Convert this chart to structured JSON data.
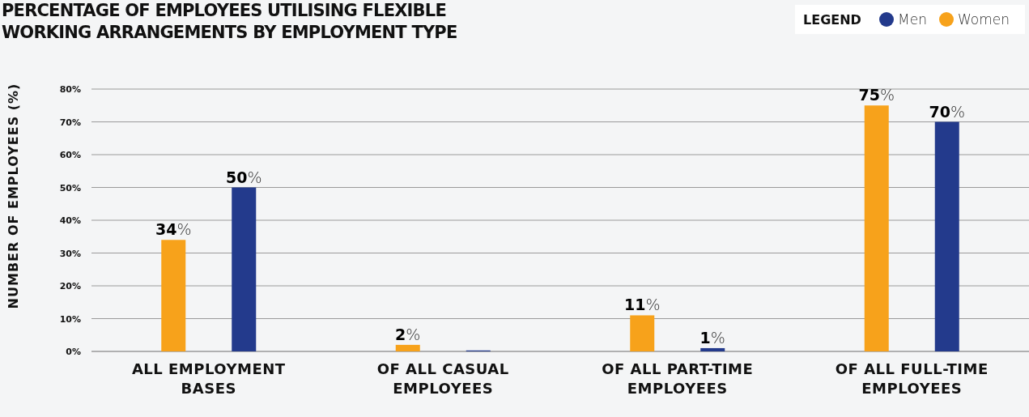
{
  "chart_data": {
    "type": "bar",
    "title": "PERCENTAGE OF EMPLOYEES UTILISING FLEXIBLE WORKING ARRANGEMENTS BY EMPLOYMENT TYPE",
    "ylabel": "NUMBER OF EMPLOYEES (%)",
    "legend_title": "LEGEND",
    "legend": "top right",
    "grid": "y",
    "categories": [
      "ALL EMPLOYMENT BASES",
      "OF ALL CASUAL EMPLOYEES",
      "OF ALL PART-TIME EMPLOYEES",
      "OF ALL FULL-TIME EMPLOYEES"
    ],
    "series": [
      {
        "name": "Women",
        "color": "#f7a21b",
        "values": [
          34,
          2,
          11,
          75
        ],
        "value_labels": [
          "34%",
          "2%",
          "11%",
          "75%"
        ]
      },
      {
        "name": "Men",
        "color": "#233a8c",
        "values": [
          50,
          0.3,
          1,
          70
        ],
        "value_labels": [
          "50%",
          null,
          "1%",
          "70%"
        ]
      }
    ],
    "ylim": [
      0,
      80
    ],
    "yticks": [
      {
        "value": 0,
        "label": "0%"
      },
      {
        "value": 10,
        "label": "10%"
      },
      {
        "value": 20,
        "label": "20%"
      },
      {
        "value": 30,
        "label": "30%"
      },
      {
        "value": 40,
        "label": "40%"
      },
      {
        "value": 50,
        "label": "50%"
      },
      {
        "value": 60,
        "label": "60%"
      },
      {
        "value": 70,
        "label": "70%"
      },
      {
        "value": 80,
        "label": "80%"
      }
    ]
  }
}
